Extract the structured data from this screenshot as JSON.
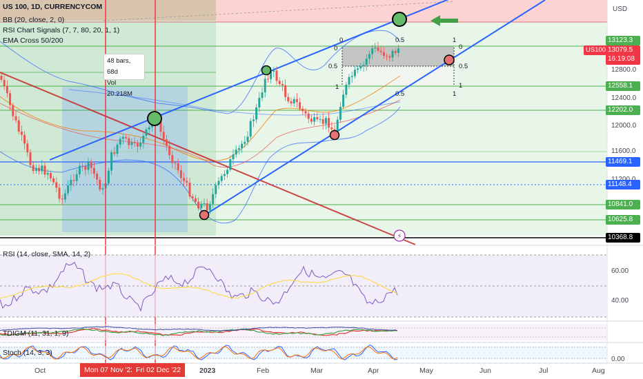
{
  "header": {
    "symbol_line": "US 100, 1D, CURRENCYCOM",
    "indicators": [
      "BB (20, close, 2, 0)",
      "RSI Chart Signals (7, 7, 80, 20, 1, 1)",
      "EMA Cross 50/200"
    ]
  },
  "currency_label": "USD",
  "price_axis": {
    "ticks": [
      "12800.0",
      "12400.0",
      "12000.0",
      "11600.0",
      "11200.0"
    ],
    "level_tags": [
      {
        "value": "13123.3",
        "color": "#4caf50"
      },
      {
        "value": "12558.1",
        "color": "#4caf50"
      },
      {
        "value": "12202.0",
        "color": "#4caf50"
      },
      {
        "value": "11469.1",
        "color": "#2962ff"
      },
      {
        "value": "11148.4",
        "color": "#2962ff"
      },
      {
        "value": "10841.0",
        "color": "#4caf50"
      },
      {
        "value": "10625.8",
        "color": "#4caf50"
      },
      {
        "value": "10368.8",
        "color": "#000000"
      }
    ],
    "current": {
      "symbol": "US100",
      "price": "13079.5",
      "countdown": "16:19:08",
      "color": "#f23645"
    }
  },
  "measure_box": {
    "bars": "48 bars, 68d",
    "volume": "Vol 20.218M"
  },
  "fib_labels": [
    "0",
    "0.5",
    "1",
    "0",
    "0.5",
    "1",
    "0.5",
    "1",
    "0.5",
    "1"
  ],
  "rsi_panel": {
    "label": "RSI (14, close, SMA, 14, 2)",
    "ticks": [
      "60.00",
      "40.00"
    ]
  },
  "tdigm_panel": {
    "label": "TDIGM (11, 31, 1, 9)"
  },
  "stoch_panel": {
    "label": "Stoch (14, 3, 3)",
    "ticks": [
      "0.00"
    ]
  },
  "time_axis": {
    "labels": [
      "Oct",
      "2023",
      "Feb",
      "Mar",
      "Apr",
      "May",
      "Jun",
      "Jul",
      "Aug"
    ],
    "highlighted": [
      "Mon 07 Nov '22",
      "Fri 02 Dec '22"
    ]
  },
  "colors": {
    "bull": "#26a69a",
    "bear": "#ef5350",
    "trend_blue": "#2962ff",
    "level_green": "#4caf50",
    "vline_red": "#f23645"
  }
}
